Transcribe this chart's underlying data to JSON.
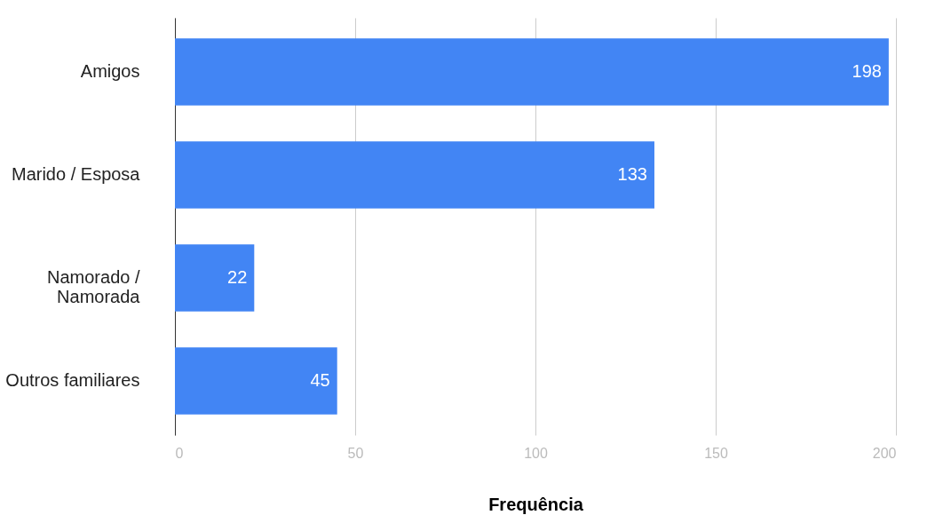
{
  "chart_data": {
    "type": "bar",
    "orientation": "horizontal",
    "xlabel": "Frequência",
    "categories": [
      "Amigos",
      "Marido / Esposa",
      "Namorado / Namorada",
      "Outros familiares"
    ],
    "values": [
      198,
      133,
      22,
      45
    ],
    "color": "#4285f4",
    "xlim": [
      0,
      200
    ],
    "xticks": [
      0,
      50,
      100,
      150,
      200
    ],
    "grid": "x",
    "data_labels": true
  }
}
